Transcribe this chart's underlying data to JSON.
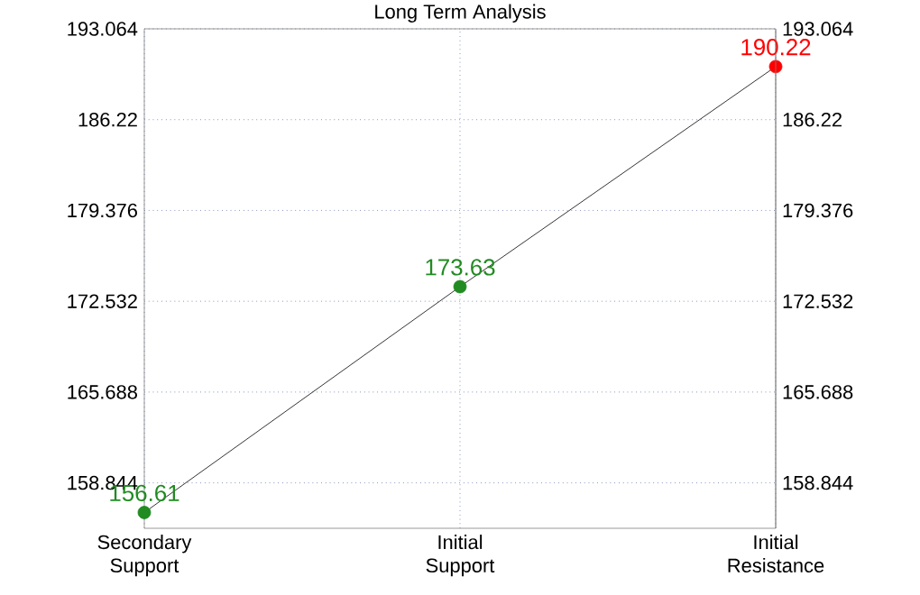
{
  "chart_data": {
    "type": "line",
    "title": "Long Term Analysis",
    "categories": [
      "Secondary Support",
      "Initial Support",
      "Initial Resistance"
    ],
    "series": [
      {
        "color": "#000000",
        "colors": [
          "#228b22",
          "#228b22",
          "#ff0000"
        ],
        "values": [
          156.61,
          173.63,
          190.22
        ]
      }
    ],
    "ylim": [
      155.42,
      193.064
    ],
    "yticks": [
      158.844,
      165.688,
      172.532,
      179.376,
      186.22,
      193.064
    ],
    "y2lim": [
      155.42,
      193.064
    ],
    "y2ticks": [
      158.844,
      165.688,
      172.532,
      179.376,
      186.22,
      193.064
    ],
    "data_labels": true,
    "grid": true,
    "marker": "circle",
    "line_style": "solid"
  }
}
